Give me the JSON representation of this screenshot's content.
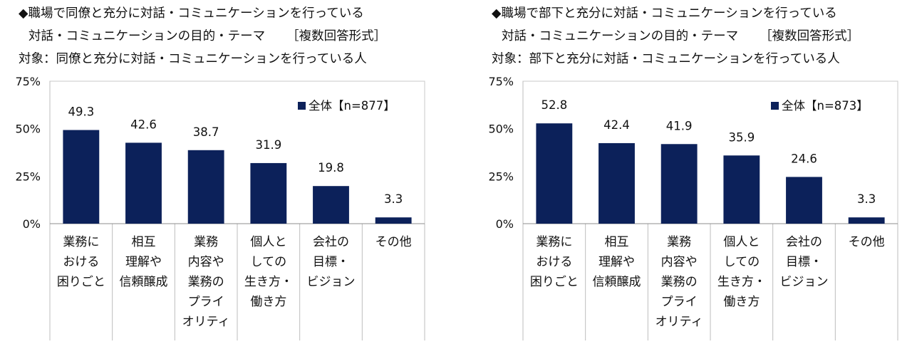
{
  "chart_data": [
    {
      "type": "bar",
      "title_line1": "◆職場で同僚と充分に対話・コミュニケーションを行っている",
      "title_line2": "対話・コミュニケーションの目的・テーマ",
      "title_tag": "［複数回答形式］",
      "subtitle": "対象：同僚と充分に対話・コミュニケーションを行っている人",
      "categories": [
        "業務に\nおける\n困りごと",
        "相互\n理解や\n信頼醸成",
        "業務\n内容や\n業務の\nプライ\nオリティ",
        "個人と\nしての\n生き方・\n働き方",
        "会社の\n目標・\nビジョン",
        "その他"
      ],
      "series": [
        {
          "name": "全体【n=877】",
          "values": [
            49.3,
            42.6,
            38.7,
            31.9,
            19.8,
            3.3
          ]
        }
      ],
      "value_labels": [
        "49.3",
        "42.6",
        "38.7",
        "31.9",
        "19.8",
        "3.3"
      ],
      "ylim": [
        0,
        75
      ],
      "yticks": [
        "0%",
        "25%",
        "50%",
        "75%"
      ],
      "ytick_values": [
        0,
        25,
        50,
        75
      ],
      "xlabel": "",
      "ylabel": "",
      "legend_position": "top-right",
      "bar_color": "#0c215a"
    },
    {
      "type": "bar",
      "title_line1": "◆職場で部下と充分に対話・コミュニケーションを行っている",
      "title_line2": "対話・コミュニケーションの目的・テーマ",
      "title_tag": "［複数回答形式］",
      "subtitle": "対象：部下と充分に対話・コミュニケーションを行っている人",
      "categories": [
        "業務に\nおける\n困りごと",
        "相互\n理解や\n信頼醸成",
        "業務\n内容や\n業務の\nプライ\nオリティ",
        "個人と\nしての\n生き方・\n働き方",
        "会社の\n目標・\nビジョン",
        "その他"
      ],
      "series": [
        {
          "name": "全体【n=873】",
          "values": [
            52.8,
            42.4,
            41.9,
            35.9,
            24.6,
            3.3
          ]
        }
      ],
      "value_labels": [
        "52.8",
        "42.4",
        "41.9",
        "35.9",
        "24.6",
        "3.3"
      ],
      "ylim": [
        0,
        75
      ],
      "yticks": [
        "0%",
        "25%",
        "50%",
        "75%"
      ],
      "ytick_values": [
        0,
        25,
        50,
        75
      ],
      "xlabel": "",
      "ylabel": "",
      "legend_position": "top-right",
      "bar_color": "#0c215a"
    }
  ]
}
